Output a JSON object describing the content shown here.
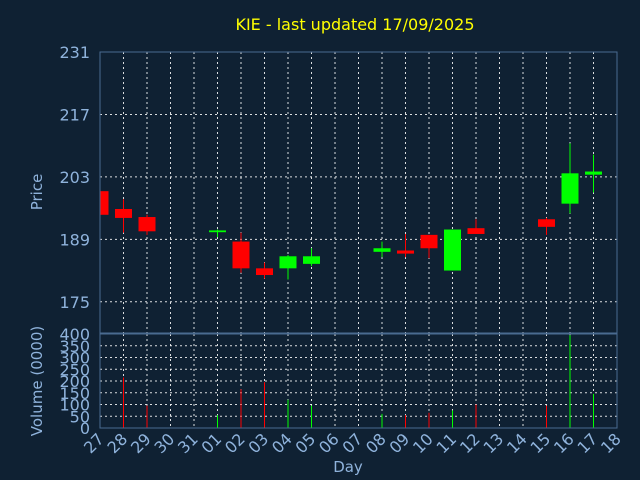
{
  "chart_data": {
    "type": "candlestick",
    "title": "KIE - last updated 17/09/2025",
    "colors": {
      "background": "#0f2133",
      "up": "#00ff00",
      "down": "#ff0000",
      "title": "#ffff00",
      "axis_text": "#8fb3dc",
      "grid": "#ffffff"
    },
    "x_ticks": [
      "27",
      "28",
      "29",
      "30",
      "31",
      "01",
      "02",
      "03",
      "04",
      "05",
      "06",
      "07",
      "08",
      "09",
      "10",
      "11",
      "12",
      "13",
      "14",
      "15",
      "16",
      "17",
      "18"
    ],
    "xlabel": "Day",
    "price_panel": {
      "ylabel": "Price",
      "ylim": [
        168,
        231
      ],
      "yticks": [
        175,
        189,
        203,
        217,
        231
      ]
    },
    "volume_panel": {
      "ylabel": "Volume (0000)",
      "ylim": [
        0,
        400
      ],
      "yticks": [
        0,
        50,
        100,
        150,
        200,
        250,
        300,
        350,
        400
      ]
    },
    "candles": [
      {
        "date": "27",
        "open": 199.8,
        "high": 199.8,
        "low": 194.5,
        "close": 194.5,
        "volume": 0
      },
      {
        "date": "28",
        "open": 195.8,
        "high": 198.0,
        "low": 190.5,
        "close": 193.8,
        "volume": 215
      },
      {
        "date": "29",
        "open": 194.0,
        "high": 194.5,
        "low": 190.0,
        "close": 190.8,
        "volume": 95
      },
      {
        "date": "01",
        "open": 190.6,
        "high": 191.2,
        "low": 189.5,
        "close": 191.0,
        "volume": 55
      },
      {
        "date": "02",
        "open": 188.5,
        "high": 190.5,
        "low": 181.5,
        "close": 182.5,
        "volume": 165
      },
      {
        "date": "03",
        "open": 182.5,
        "high": 183.8,
        "low": 180.2,
        "close": 181.0,
        "volume": 195
      },
      {
        "date": "04",
        "open": 182.5,
        "high": 185.5,
        "low": 180.0,
        "close": 185.2,
        "volume": 120
      },
      {
        "date": "05",
        "open": 183.5,
        "high": 187.0,
        "low": 183.0,
        "close": 185.2,
        "volume": 95
      },
      {
        "date": "08",
        "open": 186.2,
        "high": 188.5,
        "low": 185.0,
        "close": 187.0,
        "volume": 60
      },
      {
        "date": "09",
        "open": 186.5,
        "high": 190.2,
        "low": 185.0,
        "close": 185.8,
        "volume": 55
      },
      {
        "date": "10",
        "open": 190.0,
        "high": 190.0,
        "low": 184.8,
        "close": 187.0,
        "volume": 65
      },
      {
        "date": "11",
        "open": 182.0,
        "high": 191.2,
        "low": 182.0,
        "close": 191.2,
        "volume": 75
      },
      {
        "date": "12",
        "open": 191.5,
        "high": 193.5,
        "low": 190.2,
        "close": 190.2,
        "volume": 100
      },
      {
        "date": "15",
        "open": 193.5,
        "high": 193.8,
        "low": 190.0,
        "close": 191.8,
        "volume": 95
      },
      {
        "date": "16",
        "open": 197.0,
        "high": 210.5,
        "low": 194.8,
        "close": 203.8,
        "volume": 395
      },
      {
        "date": "17",
        "open": 203.5,
        "high": 208.0,
        "low": 199.5,
        "close": 204.2,
        "volume": 145
      }
    ]
  }
}
